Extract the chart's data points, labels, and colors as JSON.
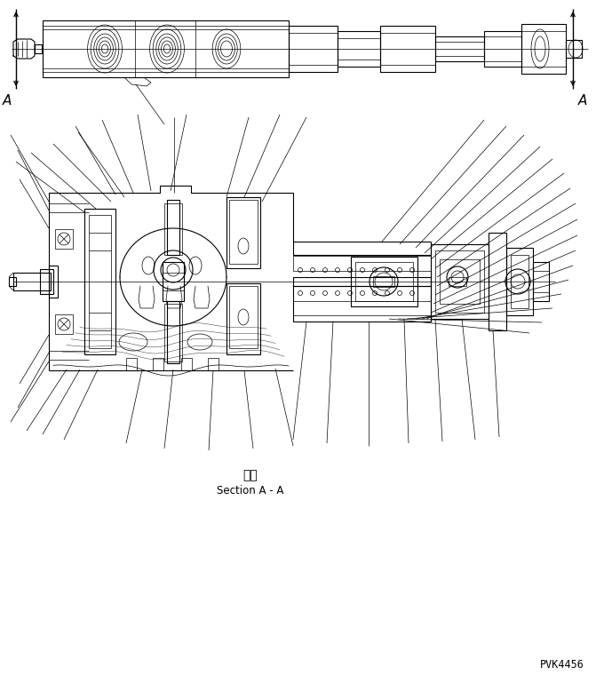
{
  "background_color": "#ffffff",
  "line_color": "#000000",
  "title_japanese": "断面",
  "title_english": "Section A - A",
  "part_number": "PVK4456",
  "fig_width": 6.8,
  "fig_height": 7.69,
  "dpi": 100
}
